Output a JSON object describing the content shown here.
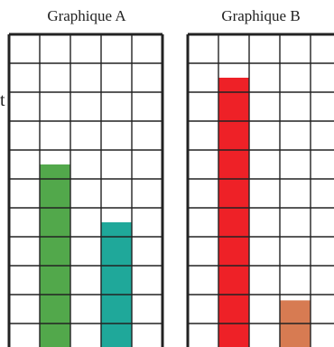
{
  "stray_char": "t",
  "chart_data": [
    {
      "type": "bar",
      "title": "Graphique A",
      "grid": true,
      "ylim": [
        0,
        11
      ],
      "values": [
        0,
        6.5,
        0,
        4.5,
        0
      ],
      "colors": [
        "",
        "#52a84b",
        "",
        "#1fa89a",
        ""
      ]
    },
    {
      "type": "bar",
      "title": "Graphique B",
      "grid": true,
      "ylim": [
        0,
        11
      ],
      "values": [
        0,
        9.5,
        0,
        1.8,
        0
      ],
      "colors": [
        "",
        "#ee2127",
        "",
        "#d77b52",
        ""
      ]
    }
  ]
}
